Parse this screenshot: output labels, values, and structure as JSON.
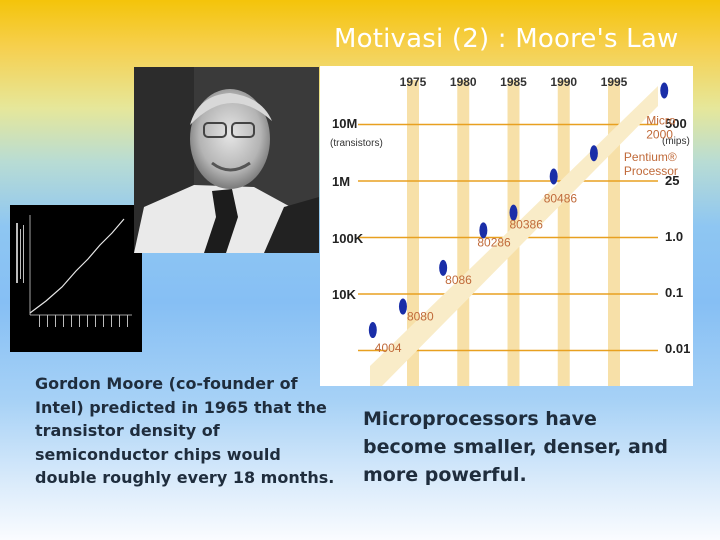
{
  "slide": {
    "title": "Motivasi (2) : Moore's Law",
    "moore_text": "Gordon Moore (co-founder of Intel) predicted in 1965 that the transistor density of semiconductor chips would double roughly every 18 months.",
    "micro_text": "Microprocessors have become smaller, denser, and more powerful."
  },
  "colors": {
    "gold": "#f4c40a",
    "sky_blue": "#86bff4",
    "chart_bar": "#f7e0a8",
    "grid_line": "#e8a020",
    "chip_label": "#c06a3a",
    "point_blue": "#1a2ea8"
  },
  "chart_data": {
    "type": "scatter",
    "top_axis": {
      "ticks": [
        "1975",
        "1980",
        "1985",
        "1990",
        "1995"
      ]
    },
    "left_axis": {
      "label": "(transistors)",
      "ticks": [
        "10M",
        "1M",
        "100K",
        "10K"
      ]
    },
    "right_axis": {
      "label": "(mips)",
      "ticks": [
        "500",
        "25",
        "1.0",
        "0.1",
        "0.01"
      ]
    },
    "points": [
      {
        "label": "4004",
        "year": 1971,
        "transistors": 2300
      },
      {
        "label": "8080",
        "year": 1974,
        "transistors": 6000
      },
      {
        "label": "8086",
        "year": 1978,
        "transistors": 29000
      },
      {
        "label": "80286",
        "year": 1982,
        "transistors": 134000
      },
      {
        "label": "80386",
        "year": 1985,
        "transistors": 275000
      },
      {
        "label": "80486",
        "year": 1989,
        "transistors": 1200000
      },
      {
        "label": "Pentium® Processor",
        "year": 1993,
        "transistors": 3100000
      },
      {
        "label": "Micro 2000",
        "year": 2000,
        "transistors": 40000000
      }
    ]
  }
}
